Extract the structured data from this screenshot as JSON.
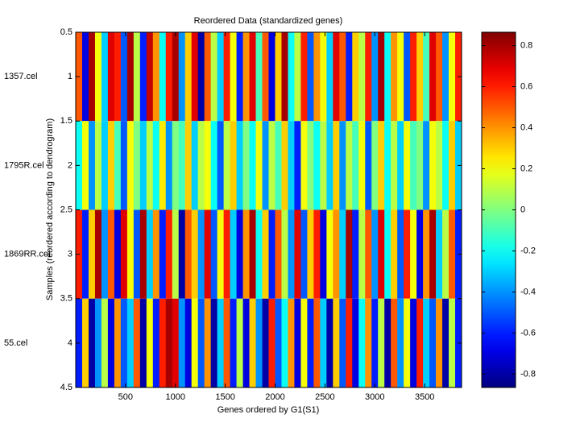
{
  "chart_data": {
    "type": "heatmap",
    "title": "Reordered Data (standardized genes)",
    "xlabel": "Genes ordered by G1(S1)",
    "ylabel": "Samples (reordered according to dendrogram)",
    "rows": [
      "1357.cel",
      "1795R.cel",
      "1869RR.cel",
      "55.cel"
    ],
    "colormap": "jet",
    "xlim": [
      0.5,
      3870
    ],
    "xticks": [
      500,
      1000,
      1500,
      2000,
      2500,
      3000,
      3500
    ],
    "ylim": [
      0.5,
      4.5
    ],
    "y_direction": "reverse",
    "yticks": [
      0.5,
      1,
      1.5,
      2,
      2.5,
      3,
      3.5,
      4,
      4.5
    ],
    "clim": [
      -0.865,
      0.865
    ],
    "cticks": [
      -0.8,
      -0.6,
      -0.4,
      -0.2,
      0,
      0.2,
      0.4,
      0.6,
      0.8
    ],
    "values": [
      [
        0.5,
        -0.7,
        0.8,
        0.2,
        -0.3,
        0.7,
        0.6,
        -0.5,
        0.8,
        0.1,
        -0.6,
        0.75,
        0.4,
        -0.2,
        0.6,
        0.8,
        -0.4,
        0.3,
        0.7,
        -0.8,
        0.5,
        0.1,
        -0.3,
        0.6,
        0.2,
        -0.6,
        0.4,
        0.7,
        -0.1,
        0.5,
        -0.7,
        0.3,
        0.8,
        -0.2,
        0.1,
        0.6,
        -0.5,
        0.4,
        0.2,
        -0.3,
        0.7,
        0.5,
        -0.6,
        0.3,
        0.1,
        0.6,
        -0.4,
        0.8,
        -0.2,
        0.4,
        0.2,
        -0.5,
        0.6,
        0.3,
        -0.1,
        0.7,
        0.5,
        -0.4,
        0.2,
        0.6
      ],
      [
        -0.2,
        0.2,
        -0.4,
        0.1,
        -0.3,
        0.3,
        -0.1,
        -0.5,
        0.2,
        0,
        -0.3,
        0.1,
        -0.2,
        0.25,
        -0.4,
        0,
        -0.1,
        0.3,
        -0.3,
        0.1,
        0.2,
        -0.2,
        -0.5,
        0.1,
        0.3,
        -0.3,
        0,
        -0.2,
        0.2,
        -0.4,
        0.1,
        -0.1,
        0.3,
        -0.3,
        -0.6,
        0.2,
        0,
        -0.2,
        0.1,
        -0.3,
        0.3,
        -0.4,
        0.1,
        -0.1,
        0.2,
        -0.5,
        0,
        0.3,
        -0.2,
        0.1,
        -0.3,
        0.2,
        -0.1,
        0,
        -0.4,
        0.2,
        0.1,
        -0.2,
        0.3,
        -0.3
      ],
      [
        0.6,
        -0.6,
        0.3,
        0.8,
        -0.4,
        0.5,
        -0.7,
        0.7,
        0.2,
        -0.5,
        0.8,
        -0.3,
        0.4,
        -0.6,
        0.6,
        0.1,
        -0.8,
        0.5,
        0.3,
        -0.4,
        0.7,
        -0.5,
        0.2,
        0.6,
        -0.3,
        -0.7,
        0.4,
        0.8,
        -0.2,
        0.3,
        -0.6,
        0.5,
        0.1,
        -0.4,
        0.7,
        -0.5,
        0.3,
        0.6,
        -0.7,
        0.2,
        0.4,
        -0.3,
        0.8,
        -0.6,
        0.1,
        0.5,
        -0.4,
        0.7,
        -0.2,
        0.3,
        -0.5,
        0.6,
        0.2,
        -0.7,
        0.4,
        0.8,
        -0.3,
        0.1,
        0.5,
        -0.6
      ],
      [
        -0.6,
        0.3,
        -0.8,
        -0.4,
        0.1,
        -0.7,
        0.4,
        -0.5,
        -0.3,
        0.5,
        -0.8,
        0.2,
        -0.6,
        0.6,
        0.8,
        0.7,
        -0.4,
        -0.7,
        0.2,
        -0.5,
        0.4,
        -0.8,
        -0.3,
        0.5,
        -0.6,
        0.1,
        -0.7,
        0.3,
        -0.4,
        -0.8,
        0.6,
        -0.5,
        -0.2,
        0.4,
        -0.7,
        0.2,
        -0.6,
        0.5,
        -0.3,
        -0.8,
        0.3,
        -0.5,
        0.6,
        -0.7,
        -0.2,
        0.4,
        -0.6,
        0.1,
        -0.8,
        0.5,
        -0.4,
        0.2,
        -0.7,
        0.6,
        -0.3,
        -0.5,
        0.4,
        -0.8,
        0.1,
        -0.6
      ]
    ]
  }
}
